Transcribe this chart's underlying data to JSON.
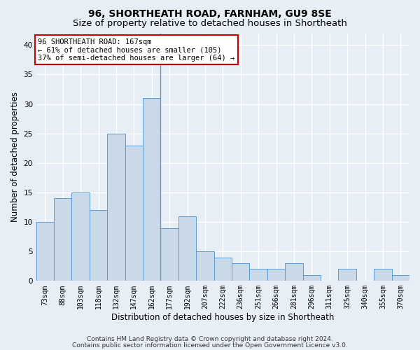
{
  "title1": "96, SHORTHEATH ROAD, FARNHAM, GU9 8SE",
  "title2": "Size of property relative to detached houses in Shortheath",
  "xlabel": "Distribution of detached houses by size in Shortheath",
  "ylabel": "Number of detached properties",
  "bar_labels": [
    "73sqm",
    "88sqm",
    "103sqm",
    "118sqm",
    "132sqm",
    "147sqm",
    "162sqm",
    "177sqm",
    "192sqm",
    "207sqm",
    "222sqm",
    "236sqm",
    "251sqm",
    "266sqm",
    "281sqm",
    "296sqm",
    "311sqm",
    "325sqm",
    "340sqm",
    "355sqm",
    "370sqm"
  ],
  "bar_values": [
    10,
    14,
    15,
    12,
    25,
    23,
    31,
    9,
    11,
    5,
    4,
    3,
    2,
    2,
    3,
    1,
    0,
    2,
    0,
    2,
    1
  ],
  "bar_color": "#c9d9e8",
  "bar_edge_color": "#5b9bd5",
  "subject_line_index": 6,
  "ylim": [
    0,
    42
  ],
  "yticks": [
    0,
    5,
    10,
    15,
    20,
    25,
    30,
    35,
    40
  ],
  "annotation_line1": "96 SHORTHEATH ROAD: 167sqm",
  "annotation_line2": "← 61% of detached houses are smaller (105)",
  "annotation_line3": "37% of semi-detached houses are larger (64) →",
  "annotation_box_facecolor": "#ffffff",
  "annotation_box_edgecolor": "#cc0000",
  "footer1": "Contains HM Land Registry data © Crown copyright and database right 2024.",
  "footer2": "Contains public sector information licensed under the Open Government Licence v3.0.",
  "bg_color": "#e8eef5",
  "plot_bg_color": "#e8eef5",
  "grid_color": "#ffffff",
  "title1_fontsize": 10,
  "title2_fontsize": 9.5,
  "tick_fontsize": 7,
  "ylabel_fontsize": 8.5,
  "xlabel_fontsize": 8.5,
  "footer_fontsize": 6.5,
  "annotation_fontsize": 7.5
}
